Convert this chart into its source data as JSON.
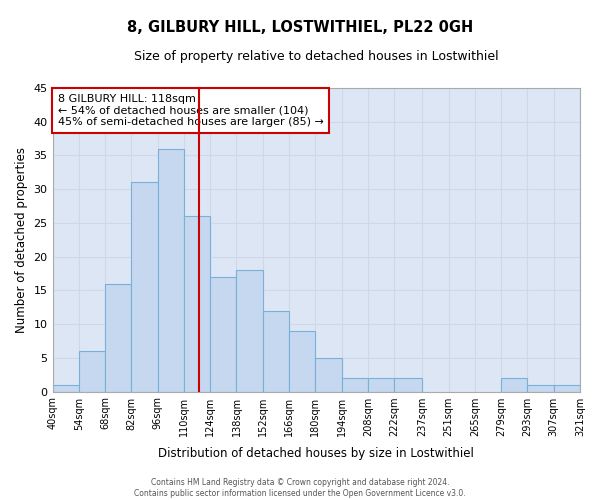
{
  "title": "8, GILBURY HILL, LOSTWITHIEL, PL22 0GH",
  "subtitle": "Size of property relative to detached houses in Lostwithiel",
  "xlabel": "Distribution of detached houses by size in Lostwithiel",
  "ylabel": "Number of detached properties",
  "bin_edges": [
    40,
    54,
    68,
    82,
    96,
    110,
    124,
    138,
    152,
    166,
    180,
    194,
    208,
    222,
    237,
    251,
    265,
    279,
    293,
    307,
    321
  ],
  "counts": [
    1,
    6,
    16,
    31,
    36,
    26,
    17,
    18,
    12,
    9,
    5,
    2,
    2,
    2,
    0,
    0,
    0,
    2,
    1,
    1
  ],
  "bar_color": "#c5d8f0",
  "bar_edge_color": "#7ab0d8",
  "vline_x": 118,
  "vline_color": "#cc0000",
  "ylim": [
    0,
    45
  ],
  "yticks": [
    0,
    5,
    10,
    15,
    20,
    25,
    30,
    35,
    40,
    45
  ],
  "tick_labels": [
    "40sqm",
    "54sqm",
    "68sqm",
    "82sqm",
    "96sqm",
    "110sqm",
    "124sqm",
    "138sqm",
    "152sqm",
    "166sqm",
    "180sqm",
    "194sqm",
    "208sqm",
    "222sqm",
    "237sqm",
    "251sqm",
    "265sqm",
    "279sqm",
    "293sqm",
    "307sqm",
    "321sqm"
  ],
  "annotation_title": "8 GILBURY HILL: 118sqm",
  "annotation_line1": "← 54% of detached houses are smaller (104)",
  "annotation_line2": "45% of semi-detached houses are larger (85) →",
  "annotation_box_color": "#ffffff",
  "annotation_box_edge_color": "#cc0000",
  "grid_color": "#d0d8e8",
  "bg_color": "#dce6f5",
  "fig_color": "#ffffff",
  "footer_line1": "Contains HM Land Registry data © Crown copyright and database right 2024.",
  "footer_line2": "Contains public sector information licensed under the Open Government Licence v3.0."
}
